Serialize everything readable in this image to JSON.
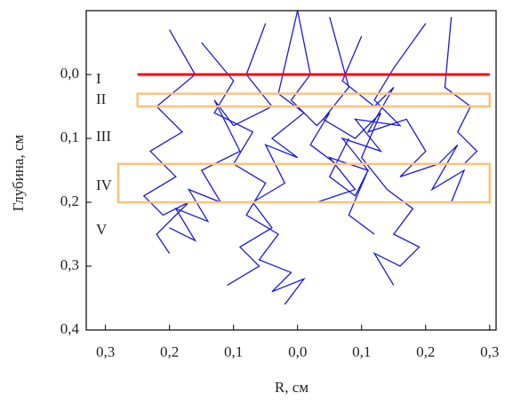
{
  "chart_data": {
    "type": "line",
    "xlabel": "R, см",
    "ylabel": "Глубина, см",
    "xlim": [
      -0.33,
      0.31
    ],
    "ylim": [
      -0.1,
      0.4
    ],
    "y_inverted": true,
    "xticks": [
      {
        "value": -0.3,
        "label": "0,3"
      },
      {
        "value": -0.2,
        "label": "0,2"
      },
      {
        "value": -0.1,
        "label": "0,1"
      },
      {
        "value": 0,
        "label": "0,0"
      },
      {
        "value": 0.1,
        "label": "0,1"
      },
      {
        "value": 0.2,
        "label": "0,2"
      },
      {
        "value": 0.3,
        "label": "0,3"
      }
    ],
    "yticks": [
      {
        "value": 0,
        "label": "0,0"
      },
      {
        "value": 0.1,
        "label": "0,1"
      },
      {
        "value": 0.2,
        "label": "0,2"
      },
      {
        "value": 0.3,
        "label": "0,3"
      },
      {
        "value": 0.4,
        "label": "0,4"
      }
    ],
    "color": "#1a1adc",
    "trajectories": [
      {
        "x": [
          0.0,
          0.02,
          -0.01,
          0.03,
          0.05,
          0.02,
          0.06,
          0.08,
          0.05,
          0.09,
          0.11,
          0.08,
          0.12
        ],
        "y": [
          -0.1,
          0.0,
          0.04,
          0.08,
          0.06,
          0.11,
          0.14,
          0.1,
          0.16,
          0.19,
          0.15,
          0.22,
          0.25
        ]
      },
      {
        "x": [
          -0.05,
          -0.08,
          -0.04,
          -0.1,
          -0.13,
          -0.09,
          -0.15,
          -0.12,
          -0.17,
          -0.14,
          -0.19,
          -0.16,
          -0.2
        ],
        "y": [
          -0.08,
          0.0,
          0.05,
          0.08,
          0.04,
          0.12,
          0.15,
          0.2,
          0.18,
          0.23,
          0.21,
          0.26,
          0.24
        ]
      },
      {
        "x": [
          0.1,
          0.07,
          0.12,
          0.15,
          0.11,
          0.17,
          0.2,
          0.16,
          0.22,
          0.25,
          0.21,
          0.26,
          0.24
        ],
        "y": [
          -0.06,
          0.01,
          0.05,
          0.02,
          0.09,
          0.07,
          0.12,
          0.16,
          0.14,
          0.11,
          0.18,
          0.15,
          0.2
        ]
      },
      {
        "x": [
          -0.15,
          -0.1,
          -0.13,
          -0.07,
          -0.1,
          -0.05,
          -0.08,
          -0.03,
          -0.06,
          -0.01,
          -0.04,
          0.01,
          -0.02
        ],
        "y": [
          -0.05,
          0.01,
          0.06,
          0.09,
          0.14,
          0.17,
          0.22,
          0.25,
          0.29,
          0.31,
          0.34,
          0.32,
          0.36
        ]
      },
      {
        "x": [
          0.05,
          0.08,
          0.04,
          0.09,
          0.13,
          0.1,
          0.14,
          0.18,
          0.15,
          0.19,
          0.16,
          0.12,
          0.15
        ],
        "y": [
          -0.09,
          0.02,
          0.07,
          0.1,
          0.06,
          0.13,
          0.18,
          0.21,
          0.25,
          0.27,
          0.3,
          0.28,
          0.33
        ]
      },
      {
        "x": [
          -0.2,
          -0.16,
          -0.22,
          -0.18,
          -0.23,
          -0.19,
          -0.24,
          -0.21,
          -0.17,
          -0.22,
          -0.2
        ],
        "y": [
          -0.07,
          0.0,
          0.05,
          0.09,
          0.12,
          0.16,
          0.19,
          0.22,
          0.2,
          0.25,
          0.28
        ]
      },
      {
        "x": [
          0.0,
          -0.03,
          0.01,
          -0.04,
          0.0,
          -0.05,
          -0.02,
          -0.07,
          -0.04,
          -0.09,
          -0.06,
          -0.11
        ],
        "y": [
          -0.1,
          0.03,
          0.06,
          0.1,
          0.13,
          0.11,
          0.17,
          0.2,
          0.24,
          0.27,
          0.3,
          0.33
        ]
      },
      {
        "x": [
          0.2,
          0.15,
          0.12,
          0.16,
          0.09,
          0.13,
          0.07,
          0.11,
          0.05,
          0.09,
          0.03
        ],
        "y": [
          -0.08,
          -0.01,
          0.04,
          0.08,
          0.07,
          0.12,
          0.1,
          0.15,
          0.13,
          0.18,
          0.2
        ]
      },
      {
        "x": [
          0.24,
          0.23,
          0.27,
          0.25,
          0.28,
          0.26
        ],
        "y": [
          -0.09,
          0.02,
          0.05,
          0.09,
          0.12,
          0.14
        ]
      }
    ],
    "regions": [
      {
        "label": "I",
        "depth": [
          0,
          0
        ],
        "r": [
          -0.25,
          0.3
        ],
        "color": "#ff0000"
      },
      {
        "label": "II",
        "depth": [
          0.03,
          0.05
        ],
        "r": [
          -0.25,
          0.3
        ],
        "color": "#ffc07a"
      },
      {
        "label": "III"
      },
      {
        "label": "IV",
        "depth": [
          0.14,
          0.2
        ],
        "r": [
          -0.28,
          0.3
        ],
        "color": "#ffc07a"
      },
      {
        "label": "V"
      }
    ]
  }
}
